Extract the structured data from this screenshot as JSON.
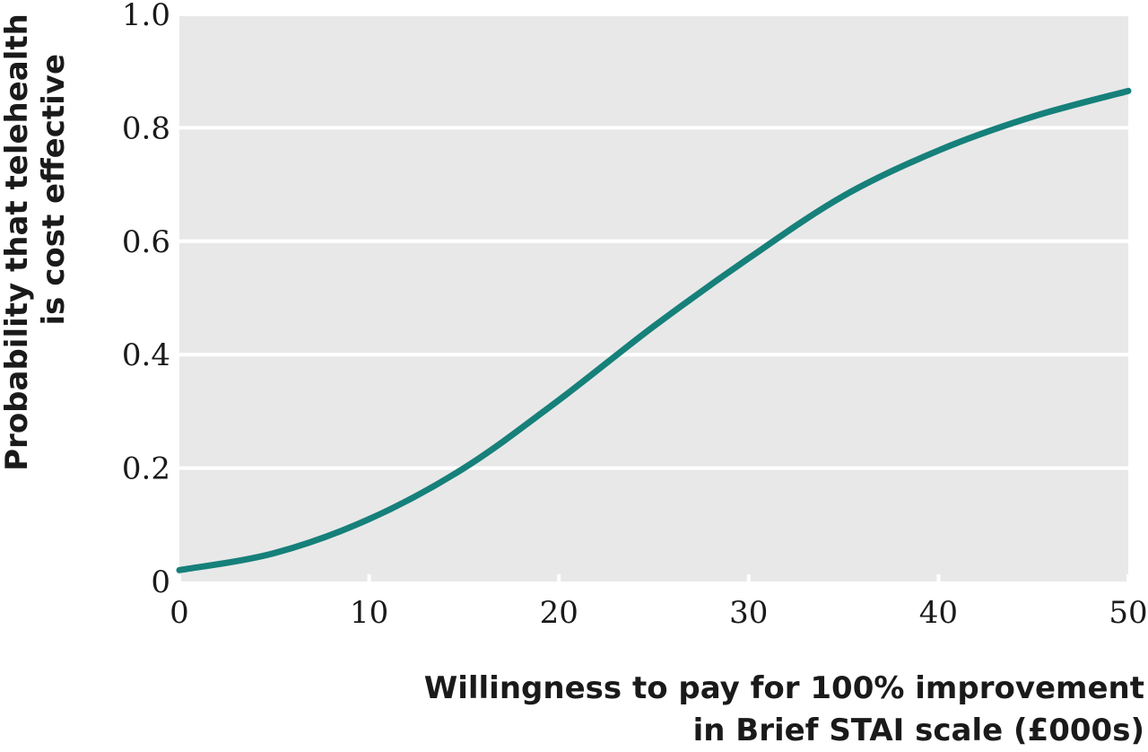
{
  "chart_data": {
    "type": "line",
    "xlabel": [
      "Willingness to pay for 100% improvement",
      "in Brief STAI scale (£000s)"
    ],
    "ylabel": [
      "Probability that telehealth",
      "is cost effective"
    ],
    "xlim": [
      0,
      50
    ],
    "ylim": [
      0,
      1.0
    ],
    "xticks": [
      0,
      10,
      20,
      30,
      40,
      50
    ],
    "xtick_labels": [
      "0",
      "10",
      "20",
      "30",
      "40",
      "50"
    ],
    "yticks": [
      0,
      0.2,
      0.4,
      0.6,
      0.8,
      1.0
    ],
    "ytick_labels": [
      "0",
      "0.2",
      "0.4",
      "0.6",
      "0.8",
      "1.0"
    ],
    "grid": true,
    "colors": {
      "line": "#16807a",
      "plot_bg": "#e8e8e8",
      "grid": "#ffffff"
    },
    "series": [
      {
        "x": [
          0,
          5,
          10,
          15,
          20,
          25,
          30,
          35,
          40,
          45,
          50
        ],
        "y": [
          0.02,
          0.05,
          0.11,
          0.2,
          0.32,
          0.45,
          0.57,
          0.68,
          0.76,
          0.82,
          0.865
        ]
      }
    ]
  }
}
